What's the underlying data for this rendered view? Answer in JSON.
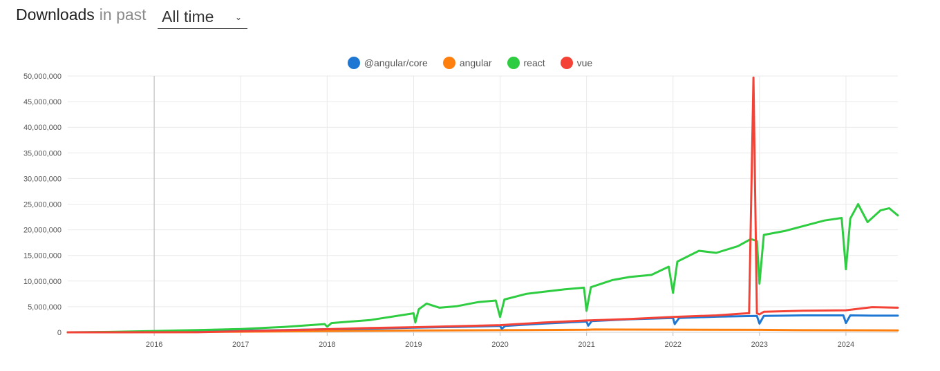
{
  "header": {
    "title": "Downloads",
    "subtitle": "in past",
    "period_value": "All time"
  },
  "chart_data": {
    "type": "line",
    "title": "",
    "xlabel": "",
    "ylabel": "",
    "x_range": [
      2015.0,
      2024.6
    ],
    "ylim": [
      0,
      50000000
    ],
    "grid": true,
    "legend_position": "top-center",
    "y_ticks": [
      0,
      5000000,
      10000000,
      15000000,
      20000000,
      25000000,
      30000000,
      35000000,
      40000000,
      45000000,
      50000000
    ],
    "y_tick_labels": [
      "0",
      "5,000,000",
      "10,000,000",
      "15,000,000",
      "20,000,000",
      "25,000,000",
      "30,000,000",
      "35,000,000",
      "40,000,000",
      "45,000,000",
      "50,000,000"
    ],
    "x_ticks": [
      2016,
      2017,
      2018,
      2019,
      2020,
      2021,
      2022,
      2023,
      2024
    ],
    "x_tick_labels": [
      "2016",
      "2017",
      "2018",
      "2019",
      "2020",
      "2021",
      "2022",
      "2023",
      "2024"
    ],
    "series": [
      {
        "name": "@angular/core",
        "color": "#1f77d4",
        "points": [
          [
            2015.0,
            0
          ],
          [
            2016.0,
            80000
          ],
          [
            2016.6,
            150000
          ],
          [
            2017.0,
            300000
          ],
          [
            2017.5,
            450000
          ],
          [
            2018.0,
            600000
          ],
          [
            2018.5,
            700000
          ],
          [
            2019.0,
            900000
          ],
          [
            2019.5,
            1050000
          ],
          [
            2020.0,
            1250000
          ],
          [
            2020.02,
            700000
          ],
          [
            2020.06,
            1250000
          ],
          [
            2020.5,
            1700000
          ],
          [
            2021.0,
            2100000
          ],
          [
            2021.02,
            1300000
          ],
          [
            2021.06,
            2200000
          ],
          [
            2021.5,
            2550000
          ],
          [
            2022.0,
            2800000
          ],
          [
            2022.02,
            1600000
          ],
          [
            2022.07,
            2800000
          ],
          [
            2022.5,
            3050000
          ],
          [
            2022.97,
            3200000
          ],
          [
            2023.0,
            1700000
          ],
          [
            2023.05,
            3200000
          ],
          [
            2023.5,
            3300000
          ],
          [
            2023.97,
            3300000
          ],
          [
            2024.0,
            1800000
          ],
          [
            2024.05,
            3300000
          ],
          [
            2024.3,
            3250000
          ],
          [
            2024.6,
            3250000
          ]
        ]
      },
      {
        "name": "angular",
        "color": "#ff7f0e",
        "points": [
          [
            2015.0,
            0
          ],
          [
            2016.0,
            30000
          ],
          [
            2017.0,
            120000
          ],
          [
            2018.0,
            250000
          ],
          [
            2019.0,
            350000
          ],
          [
            2020.0,
            420000
          ],
          [
            2021.0,
            500000
          ],
          [
            2021.1,
            550000
          ],
          [
            2022.0,
            520000
          ],
          [
            2023.0,
            480000
          ],
          [
            2023.5,
            420000
          ],
          [
            2024.0,
            400000
          ],
          [
            2024.6,
            380000
          ]
        ]
      },
      {
        "name": "react",
        "color": "#2ecc40",
        "points": [
          [
            2015.0,
            0
          ],
          [
            2015.5,
            80000
          ],
          [
            2016.0,
            250000
          ],
          [
            2016.5,
            450000
          ],
          [
            2017.0,
            650000
          ],
          [
            2017.5,
            1050000
          ],
          [
            2017.97,
            1600000
          ],
          [
            2018.0,
            1100000
          ],
          [
            2018.05,
            1800000
          ],
          [
            2018.5,
            2400000
          ],
          [
            2019.0,
            3700000
          ],
          [
            2019.02,
            1900000
          ],
          [
            2019.06,
            4500000
          ],
          [
            2019.15,
            5600000
          ],
          [
            2019.3,
            4800000
          ],
          [
            2019.5,
            5100000
          ],
          [
            2019.75,
            5900000
          ],
          [
            2019.95,
            6200000
          ],
          [
            2020.0,
            3000000
          ],
          [
            2020.05,
            6400000
          ],
          [
            2020.3,
            7500000
          ],
          [
            2020.5,
            7900000
          ],
          [
            2020.75,
            8400000
          ],
          [
            2020.97,
            8700000
          ],
          [
            2021.0,
            4200000
          ],
          [
            2021.05,
            8800000
          ],
          [
            2021.3,
            10200000
          ],
          [
            2021.5,
            10800000
          ],
          [
            2021.75,
            11200000
          ],
          [
            2021.95,
            12800000
          ],
          [
            2022.0,
            7700000
          ],
          [
            2022.05,
            13800000
          ],
          [
            2022.3,
            15900000
          ],
          [
            2022.5,
            15500000
          ],
          [
            2022.75,
            16800000
          ],
          [
            2022.9,
            18200000
          ],
          [
            2022.97,
            17800000
          ],
          [
            2023.0,
            9500000
          ],
          [
            2023.05,
            19000000
          ],
          [
            2023.3,
            19800000
          ],
          [
            2023.5,
            20700000
          ],
          [
            2023.75,
            21800000
          ],
          [
            2023.95,
            22300000
          ],
          [
            2024.0,
            12300000
          ],
          [
            2024.05,
            22200000
          ],
          [
            2024.14,
            25000000
          ],
          [
            2024.25,
            21500000
          ],
          [
            2024.4,
            23800000
          ],
          [
            2024.5,
            24200000
          ],
          [
            2024.6,
            22800000
          ]
        ]
      },
      {
        "name": "vue",
        "color": "#f44336",
        "points": [
          [
            2015.0,
            0
          ],
          [
            2016.5,
            20000
          ],
          [
            2017.0,
            200000
          ],
          [
            2017.5,
            400000
          ],
          [
            2018.0,
            600000
          ],
          [
            2018.5,
            850000
          ],
          [
            2019.0,
            1000000
          ],
          [
            2019.5,
            1200000
          ],
          [
            2020.0,
            1400000
          ],
          [
            2020.5,
            1900000
          ],
          [
            2021.0,
            2300000
          ],
          [
            2021.5,
            2600000
          ],
          [
            2022.0,
            3000000
          ],
          [
            2022.5,
            3300000
          ],
          [
            2022.85,
            3700000
          ],
          [
            2022.88,
            3700000
          ],
          [
            2022.93,
            49700000
          ],
          [
            2022.97,
            3700000
          ],
          [
            2023.0,
            3500000
          ],
          [
            2023.05,
            4000000
          ],
          [
            2023.5,
            4200000
          ],
          [
            2024.0,
            4300000
          ],
          [
            2024.3,
            4900000
          ],
          [
            2024.6,
            4800000
          ]
        ]
      }
    ]
  }
}
